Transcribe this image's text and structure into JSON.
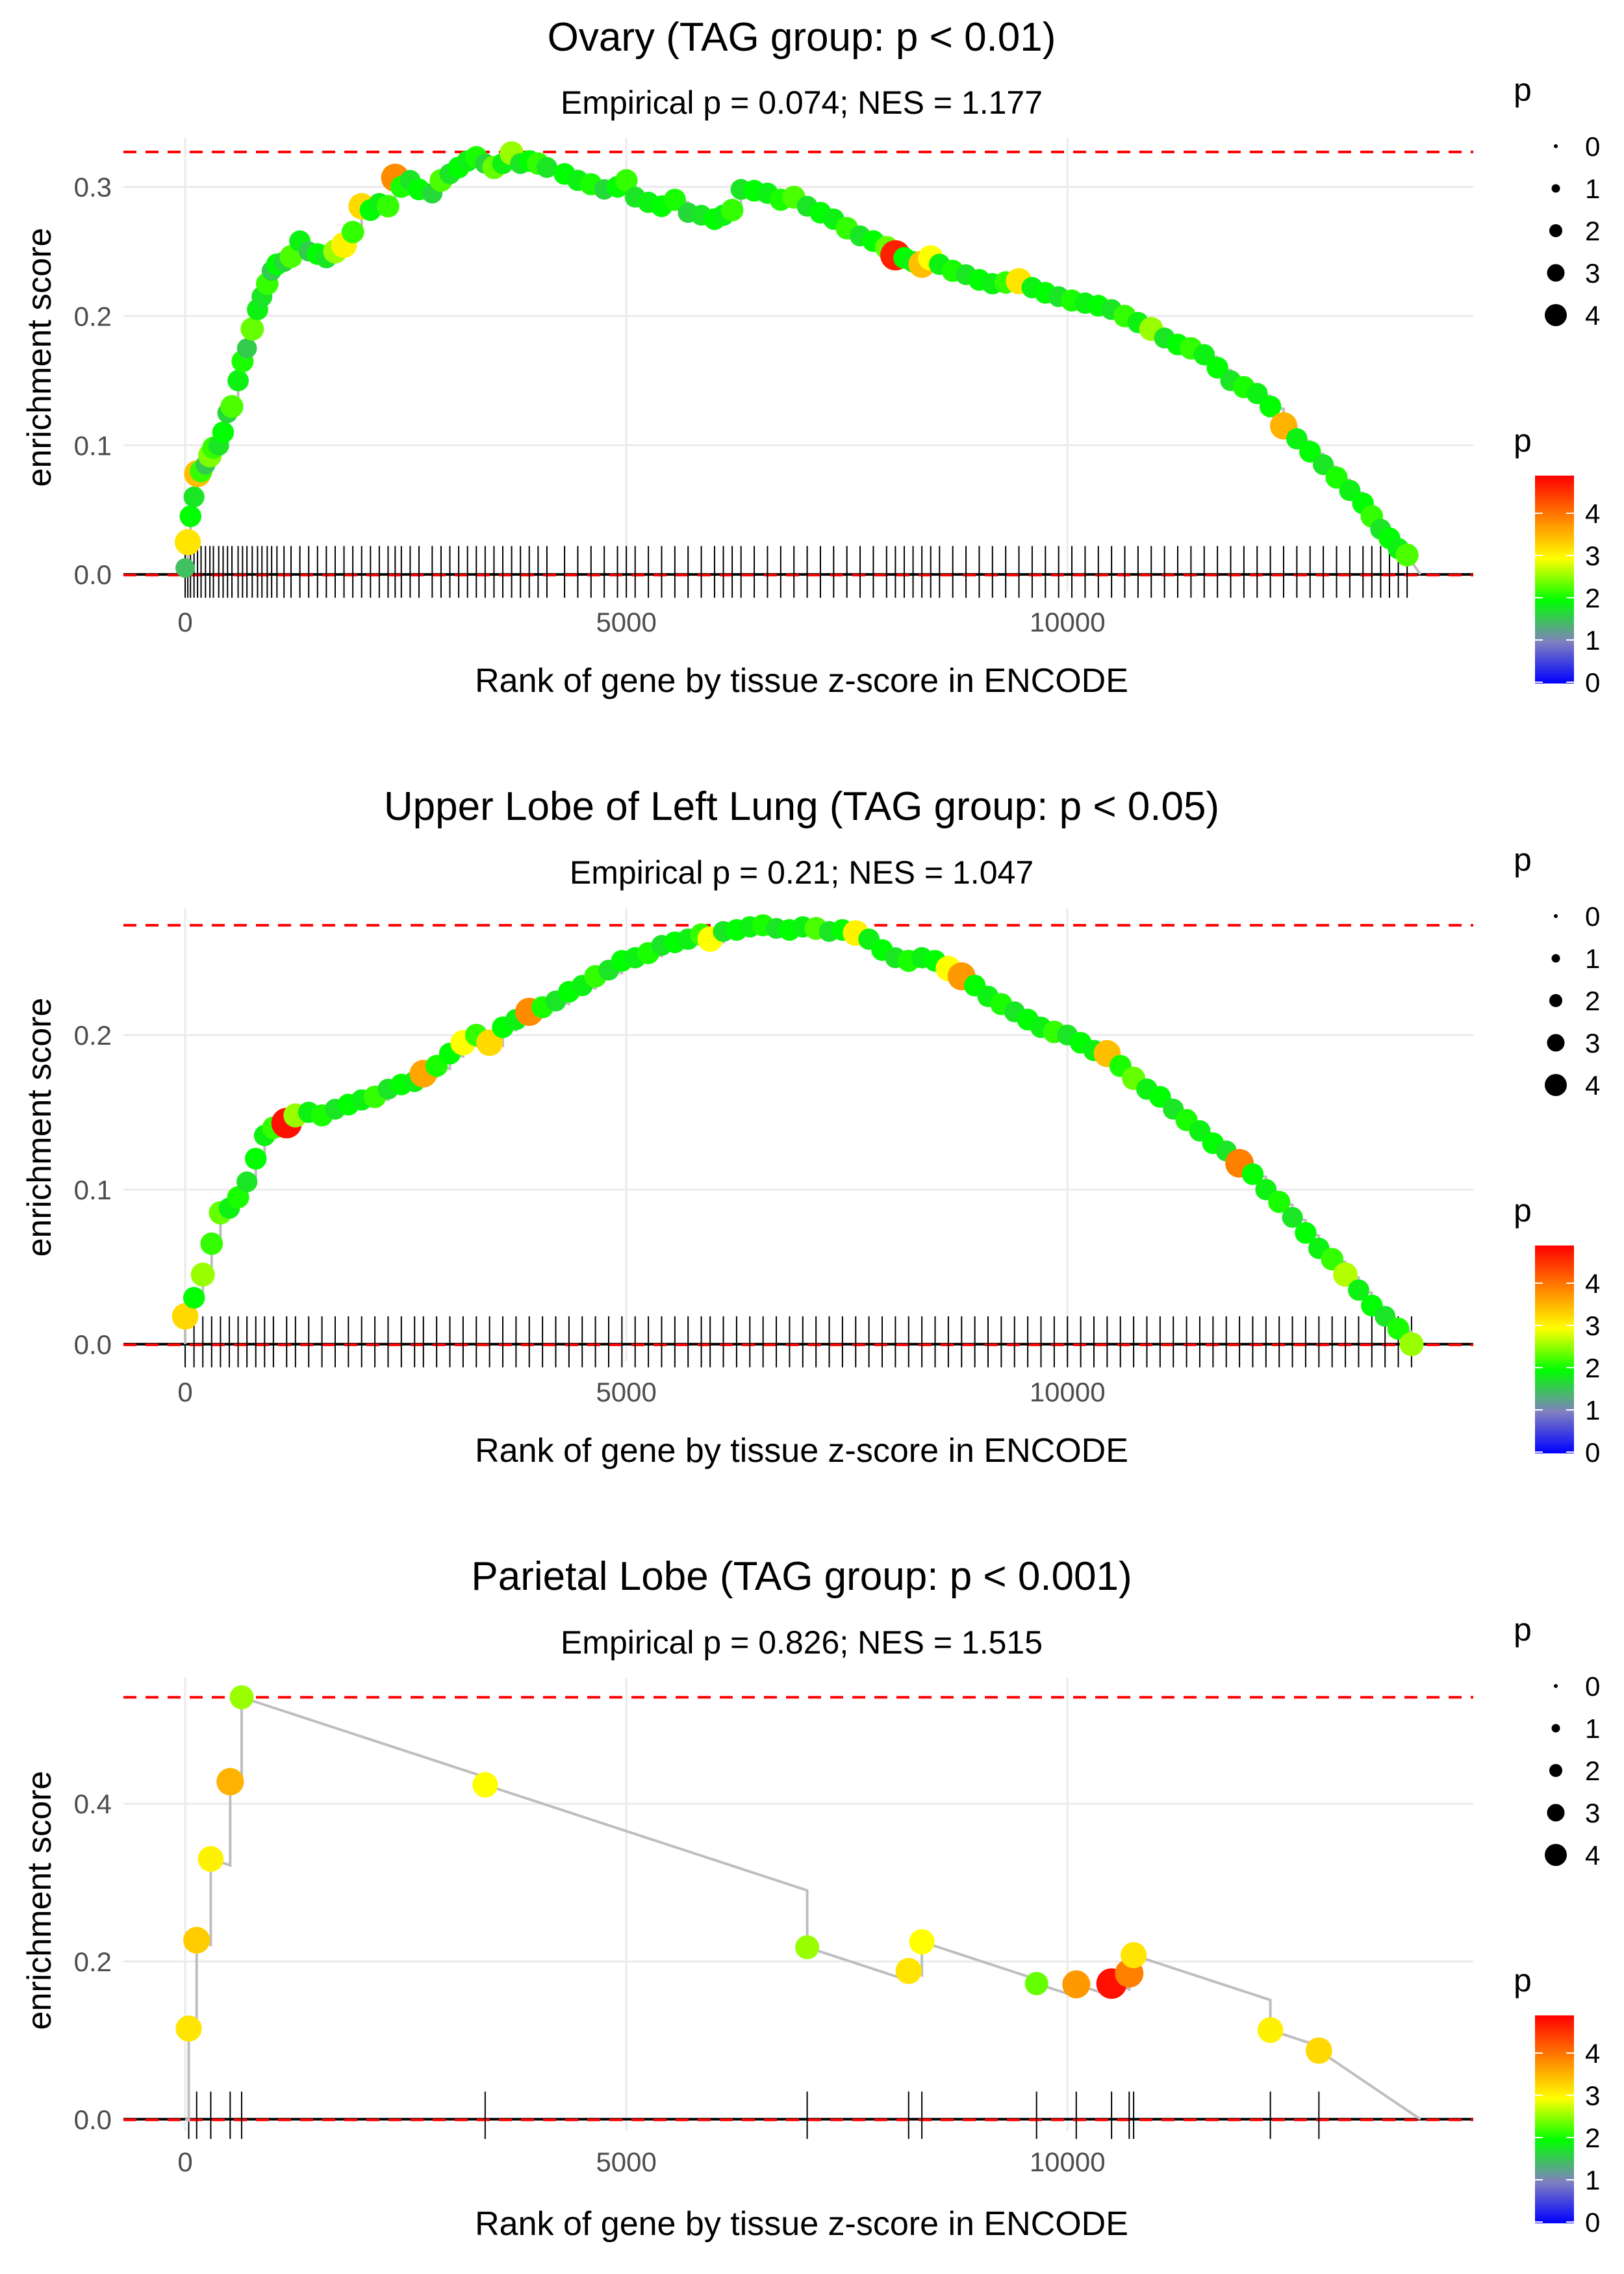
{
  "chart_data": [
    {
      "type": "line",
      "title": "Ovary (TAG group: p < 0.01)",
      "subtitle": "Empirical p = 0.074; NES = 1.177",
      "xlabel": "Rank of gene by tissue z-score in ENCODE",
      "ylabel": "enrichment score",
      "xlim": [
        -700,
        14600
      ],
      "ylim": [
        -0.013,
        0.338
      ],
      "xticks": [
        0,
        5000,
        10000
      ],
      "xtick_labels": [
        "0",
        "5000",
        "10000"
      ],
      "yticks": [
        0.0,
        0.1,
        0.2,
        0.3
      ],
      "ytick_labels": [
        "0.0",
        "0.1",
        "0.2",
        "0.3"
      ],
      "max_es": 0.327,
      "total_genes": 14000,
      "tick_bottom": -0.018,
      "tick_top": 0.022,
      "points": [
        [
          0,
          0.005,
          1.5
        ],
        [
          30,
          0.025,
          3.2
        ],
        [
          60,
          0.045,
          2.0
        ],
        [
          100,
          0.06,
          1.8
        ],
        [
          140,
          0.078,
          3.5
        ],
        [
          180,
          0.08,
          2.2
        ],
        [
          230,
          0.085,
          1.6
        ],
        [
          280,
          0.092,
          2.5
        ],
        [
          320,
          0.098,
          2.2
        ],
        [
          380,
          0.1,
          1.8
        ],
        [
          430,
          0.11,
          2.0
        ],
        [
          480,
          0.125,
          1.7
        ],
        [
          530,
          0.13,
          2.3
        ],
        [
          600,
          0.15,
          1.9
        ],
        [
          650,
          0.165,
          2.1
        ],
        [
          700,
          0.175,
          1.6
        ],
        [
          760,
          0.19,
          2.4
        ],
        [
          820,
          0.205,
          1.9
        ],
        [
          870,
          0.215,
          1.8
        ],
        [
          930,
          0.225,
          2.2
        ],
        [
          980,
          0.235,
          1.6
        ],
        [
          1040,
          0.24,
          2.0
        ],
        [
          1120,
          0.242,
          1.7
        ],
        [
          1200,
          0.246,
          2.3
        ],
        [
          1300,
          0.258,
          1.9
        ],
        [
          1400,
          0.25,
          1.6
        ],
        [
          1500,
          0.248,
          2.0
        ],
        [
          1600,
          0.245,
          1.8
        ],
        [
          1700,
          0.25,
          2.6
        ],
        [
          1800,
          0.255,
          3.1
        ],
        [
          1900,
          0.265,
          2.2
        ],
        [
          2000,
          0.285,
          3.3
        ],
        [
          2100,
          0.282,
          2.0
        ],
        [
          2200,
          0.287,
          1.9
        ],
        [
          2300,
          0.285,
          2.2
        ],
        [
          2380,
          0.307,
          3.9
        ],
        [
          2450,
          0.3,
          2.1
        ],
        [
          2550,
          0.305,
          1.8
        ],
        [
          2650,
          0.298,
          2.0
        ],
        [
          2800,
          0.295,
          1.7
        ],
        [
          2900,
          0.305,
          2.3
        ],
        [
          3000,
          0.31,
          1.8
        ],
        [
          3100,
          0.315,
          2.0
        ],
        [
          3200,
          0.32,
          1.9
        ],
        [
          3300,
          0.323,
          2.1
        ],
        [
          3400,
          0.318,
          1.7
        ],
        [
          3500,
          0.315,
          2.4
        ],
        [
          3600,
          0.318,
          1.9
        ],
        [
          3700,
          0.326,
          2.6
        ],
        [
          3800,
          0.318,
          1.8
        ],
        [
          3900,
          0.32,
          2.0
        ],
        [
          4000,
          0.318,
          2.2
        ],
        [
          4100,
          0.315,
          1.8
        ],
        [
          4300,
          0.31,
          2.0
        ],
        [
          4450,
          0.305,
          1.9
        ],
        [
          4600,
          0.302,
          2.1
        ],
        [
          4750,
          0.298,
          1.7
        ],
        [
          4900,
          0.3,
          2.0
        ],
        [
          5000,
          0.305,
          2.2
        ],
        [
          5100,
          0.292,
          1.8
        ],
        [
          5250,
          0.288,
          1.9
        ],
        [
          5400,
          0.285,
          2.0
        ],
        [
          5550,
          0.29,
          2.1
        ],
        [
          5700,
          0.28,
          1.7
        ],
        [
          5850,
          0.278,
          1.8
        ],
        [
          6000,
          0.275,
          2.0
        ],
        [
          6100,
          0.278,
          1.9
        ],
        [
          6200,
          0.282,
          2.2
        ],
        [
          6300,
          0.298,
          1.8
        ],
        [
          6450,
          0.297,
          2.0
        ],
        [
          6600,
          0.295,
          1.9
        ],
        [
          6750,
          0.29,
          2.1
        ],
        [
          6900,
          0.292,
          2.3
        ],
        [
          7050,
          0.285,
          1.8
        ],
        [
          7200,
          0.28,
          2.0
        ],
        [
          7350,
          0.275,
          1.9
        ],
        [
          7500,
          0.268,
          2.2
        ],
        [
          7650,
          0.262,
          1.8
        ],
        [
          7800,
          0.258,
          2.0
        ],
        [
          7950,
          0.253,
          2.4
        ],
        [
          8050,
          0.247,
          4.6
        ],
        [
          8150,
          0.245,
          2.0
        ],
        [
          8250,
          0.242,
          1.9
        ],
        [
          8350,
          0.24,
          3.5
        ],
        [
          8450,
          0.245,
          3.0
        ],
        [
          8550,
          0.24,
          1.9
        ],
        [
          8700,
          0.235,
          2.1
        ],
        [
          8850,
          0.232,
          1.8
        ],
        [
          9000,
          0.228,
          2.0
        ],
        [
          9150,
          0.225,
          1.9
        ],
        [
          9300,
          0.226,
          2.2
        ],
        [
          9450,
          0.227,
          3.2
        ],
        [
          9600,
          0.222,
          1.9
        ],
        [
          9750,
          0.218,
          2.0
        ],
        [
          9900,
          0.215,
          1.8
        ],
        [
          10050,
          0.212,
          2.1
        ],
        [
          10200,
          0.21,
          1.9
        ],
        [
          10350,
          0.208,
          2.0
        ],
        [
          10500,
          0.205,
          1.8
        ],
        [
          10650,
          0.2,
          2.2
        ],
        [
          10800,
          0.195,
          1.9
        ],
        [
          10950,
          0.19,
          2.6
        ],
        [
          11100,
          0.183,
          1.8
        ],
        [
          11250,
          0.178,
          2.0
        ],
        [
          11400,
          0.175,
          2.2
        ],
        [
          11550,
          0.17,
          1.9
        ],
        [
          11700,
          0.16,
          2.0
        ],
        [
          11850,
          0.15,
          1.8
        ],
        [
          12000,
          0.145,
          2.1
        ],
        [
          12150,
          0.14,
          1.9
        ],
        [
          12300,
          0.13,
          2.0
        ],
        [
          12450,
          0.115,
          3.6
        ],
        [
          12600,
          0.105,
          1.9
        ],
        [
          12750,
          0.095,
          2.0
        ],
        [
          12900,
          0.085,
          1.8
        ],
        [
          13050,
          0.075,
          2.1
        ],
        [
          13200,
          0.065,
          1.9
        ],
        [
          13350,
          0.055,
          2.0
        ],
        [
          13450,
          0.045,
          2.2
        ],
        [
          13550,
          0.035,
          1.8
        ],
        [
          13650,
          0.028,
          2.0
        ],
        [
          13750,
          0.02,
          1.9
        ],
        [
          13850,
          0.015,
          2.3
        ]
      ]
    },
    {
      "type": "line",
      "title": "Upper Lobe of Left Lung (TAG group: p < 0.05)",
      "subtitle": "Empirical p = 0.21; NES = 1.047",
      "xlabel": "Rank of gene by tissue z-score in ENCODE",
      "ylabel": "enrichment score",
      "xlim": [
        -700,
        14600
      ],
      "ylim": [
        -0.011,
        0.282
      ],
      "xticks": [
        0,
        5000,
        10000
      ],
      "xtick_labels": [
        "0",
        "5000",
        "10000"
      ],
      "yticks": [
        0.0,
        0.1,
        0.2
      ],
      "ytick_labels": [
        "0.0",
        "0.1",
        "0.2"
      ],
      "max_es": 0.271,
      "total_genes": 14000,
      "tick_bottom": -0.015,
      "tick_top": 0.018,
      "points": [
        [
          0,
          0.018,
          3.3
        ],
        [
          100,
          0.03,
          2.0
        ],
        [
          200,
          0.045,
          2.6
        ],
        [
          300,
          0.065,
          2.2
        ],
        [
          400,
          0.085,
          2.4
        ],
        [
          500,
          0.088,
          1.9
        ],
        [
          600,
          0.095,
          2.1
        ],
        [
          700,
          0.105,
          1.8
        ],
        [
          800,
          0.12,
          2.0
        ],
        [
          900,
          0.135,
          1.9
        ],
        [
          1000,
          0.14,
          2.2
        ],
        [
          1150,
          0.143,
          4.7
        ],
        [
          1250,
          0.148,
          2.6
        ],
        [
          1400,
          0.15,
          1.9
        ],
        [
          1550,
          0.148,
          2.1
        ],
        [
          1700,
          0.152,
          1.8
        ],
        [
          1850,
          0.155,
          2.0
        ],
        [
          2000,
          0.158,
          1.9
        ],
        [
          2150,
          0.16,
          2.2
        ],
        [
          2300,
          0.165,
          1.8
        ],
        [
          2450,
          0.168,
          2.0
        ],
        [
          2600,
          0.17,
          1.9
        ],
        [
          2700,
          0.175,
          3.7
        ],
        [
          2850,
          0.18,
          2.1
        ],
        [
          3000,
          0.188,
          2.0
        ],
        [
          3150,
          0.195,
          3.0
        ],
        [
          3300,
          0.2,
          2.2
        ],
        [
          3450,
          0.195,
          3.3
        ],
        [
          3600,
          0.205,
          2.0
        ],
        [
          3750,
          0.21,
          1.9
        ],
        [
          3900,
          0.215,
          3.9
        ],
        [
          4050,
          0.218,
          2.1
        ],
        [
          4200,
          0.222,
          1.8
        ],
        [
          4350,
          0.228,
          2.0
        ],
        [
          4500,
          0.232,
          1.9
        ],
        [
          4650,
          0.238,
          2.2
        ],
        [
          4800,
          0.242,
          1.8
        ],
        [
          4950,
          0.248,
          2.0
        ],
        [
          5100,
          0.25,
          1.9
        ],
        [
          5250,
          0.253,
          2.1
        ],
        [
          5400,
          0.258,
          1.8
        ],
        [
          5550,
          0.26,
          2.0
        ],
        [
          5700,
          0.262,
          1.9
        ],
        [
          5850,
          0.265,
          2.2
        ],
        [
          5950,
          0.262,
          3.0
        ],
        [
          6100,
          0.267,
          1.8
        ],
        [
          6250,
          0.268,
          2.0
        ],
        [
          6400,
          0.27,
          1.9
        ],
        [
          6550,
          0.271,
          2.1
        ],
        [
          6700,
          0.269,
          1.8
        ],
        [
          6850,
          0.268,
          2.0
        ],
        [
          7000,
          0.27,
          1.9
        ],
        [
          7150,
          0.269,
          2.3
        ],
        [
          7300,
          0.267,
          1.8
        ],
        [
          7450,
          0.268,
          2.0
        ],
        [
          7600,
          0.266,
          3.1
        ],
        [
          7750,
          0.262,
          1.9
        ],
        [
          7900,
          0.255,
          2.0
        ],
        [
          8050,
          0.25,
          1.8
        ],
        [
          8200,
          0.248,
          2.1
        ],
        [
          8350,
          0.25,
          1.9
        ],
        [
          8500,
          0.248,
          2.0
        ],
        [
          8650,
          0.243,
          3.0
        ],
        [
          8800,
          0.238,
          3.8
        ],
        [
          8950,
          0.232,
          2.0
        ],
        [
          9100,
          0.225,
          1.9
        ],
        [
          9250,
          0.22,
          2.1
        ],
        [
          9400,
          0.215,
          1.8
        ],
        [
          9550,
          0.21,
          2.0
        ],
        [
          9700,
          0.205,
          1.9
        ],
        [
          9850,
          0.202,
          2.2
        ],
        [
          10000,
          0.2,
          1.8
        ],
        [
          10150,
          0.195,
          2.0
        ],
        [
          10300,
          0.19,
          1.9
        ],
        [
          10450,
          0.188,
          3.5
        ],
        [
          10600,
          0.18,
          2.1
        ],
        [
          10750,
          0.172,
          2.4
        ],
        [
          10900,
          0.165,
          1.9
        ],
        [
          11050,
          0.16,
          2.0
        ],
        [
          11200,
          0.152,
          1.8
        ],
        [
          11350,
          0.145,
          2.1
        ],
        [
          11500,
          0.138,
          1.9
        ],
        [
          11650,
          0.13,
          2.0
        ],
        [
          11800,
          0.125,
          1.8
        ],
        [
          11950,
          0.117,
          4.0
        ],
        [
          12100,
          0.11,
          2.0
        ],
        [
          12250,
          0.1,
          1.9
        ],
        [
          12400,
          0.092,
          2.1
        ],
        [
          12550,
          0.082,
          1.8
        ],
        [
          12700,
          0.072,
          2.0
        ],
        [
          12850,
          0.062,
          1.9
        ],
        [
          13000,
          0.055,
          2.2
        ],
        [
          13150,
          0.045,
          2.7
        ],
        [
          13300,
          0.035,
          1.9
        ],
        [
          13450,
          0.025,
          2.0
        ],
        [
          13600,
          0.018,
          1.8
        ],
        [
          13750,
          0.01,
          2.1
        ],
        [
          13900,
          0.0,
          2.6
        ]
      ]
    },
    {
      "type": "line",
      "title": "Parietal Lobe (TAG group: p < 0.001)",
      "subtitle": "Empirical p = 0.826; NES = 1.515",
      "xlabel": "Rank of gene by tissue z-score in ENCODE",
      "ylabel": "enrichment score",
      "xlim": [
        -700,
        14600
      ],
      "ylim": [
        -0.015,
        0.56
      ],
      "xticks": [
        0,
        5000,
        10000
      ],
      "xtick_labels": [
        "0",
        "5000",
        "10000"
      ],
      "yticks": [
        0.0,
        0.2,
        0.4
      ],
      "ytick_labels": [
        "0.0",
        "0.2",
        "0.4"
      ],
      "max_es": 0.535,
      "total_genes": 14000,
      "tick_bottom": -0.025,
      "tick_top": 0.035,
      "points": [
        [
          40,
          0.115,
          3.2
        ],
        [
          130,
          0.227,
          3.4
        ],
        [
          290,
          0.33,
          3.1
        ],
        [
          510,
          0.428,
          3.6
        ],
        [
          640,
          0.535,
          2.6
        ],
        [
          3400,
          0.424,
          3.0
        ],
        [
          7050,
          0.218,
          2.6
        ],
        [
          8200,
          0.188,
          3.2
        ],
        [
          8350,
          0.225,
          3.0
        ],
        [
          9650,
          0.172,
          2.4
        ],
        [
          10100,
          0.171,
          3.8
        ],
        [
          10500,
          0.172,
          4.7
        ],
        [
          10700,
          0.185,
          4.0
        ],
        [
          10750,
          0.208,
          3.2
        ],
        [
          12300,
          0.113,
          3.1
        ],
        [
          12850,
          0.087,
          3.3
        ]
      ]
    }
  ],
  "legend": {
    "size_title": "p",
    "size_labels": [
      "0",
      "1",
      "2",
      "3",
      "4"
    ],
    "color_title": "p",
    "color_labels": [
      "4",
      "3",
      "2",
      "1",
      "0"
    ],
    "gradient_colors": [
      "#ff0000",
      "#ff7f00",
      "#ffff00",
      "#00ff00",
      "#8080c0",
      "#0000ff"
    ]
  }
}
